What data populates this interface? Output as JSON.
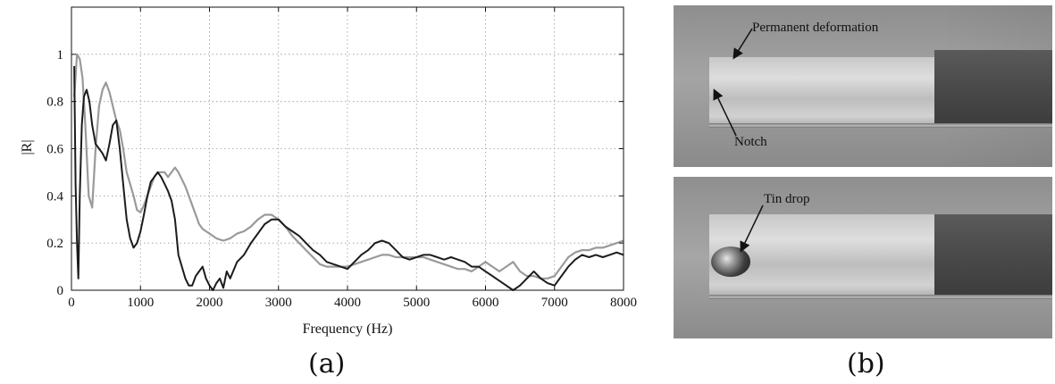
{
  "chart_data": {
    "type": "line",
    "xlabel": "Frequency (Hz)",
    "ylabel": "|R|",
    "xlim": [
      0,
      8000
    ],
    "ylim": [
      0,
      1.2
    ],
    "xticks": [
      0,
      1000,
      2000,
      3000,
      4000,
      5000,
      6000,
      7000,
      8000
    ],
    "yticks": [
      0,
      0.2,
      0.4,
      0.6,
      0.8,
      1
    ],
    "grid": true,
    "legend": "none",
    "series": [
      {
        "color": "#9a9a9a",
        "x": [
          40,
          80,
          120,
          160,
          200,
          250,
          300,
          350,
          400,
          450,
          500,
          550,
          600,
          650,
          700,
          750,
          800,
          850,
          900,
          950,
          1000,
          1050,
          1100,
          1150,
          1200,
          1250,
          1300,
          1350,
          1400,
          1450,
          1500,
          1550,
          1600,
          1650,
          1700,
          1750,
          1800,
          1850,
          1900,
          1950,
          2000,
          2100,
          2200,
          2300,
          2400,
          2500,
          2600,
          2700,
          2800,
          2900,
          3000,
          3100,
          3200,
          3300,
          3400,
          3500,
          3600,
          3700,
          3800,
          3900,
          4000,
          4100,
          4200,
          4300,
          4400,
          4500,
          4600,
          4700,
          4800,
          4900,
          5000,
          5100,
          5200,
          5300,
          5400,
          5500,
          5600,
          5700,
          5800,
          5900,
          6000,
          6100,
          6200,
          6300,
          6400,
          6500,
          6600,
          6700,
          6800,
          6900,
          7000,
          7100,
          7200,
          7300,
          7400,
          7500,
          7600,
          7700,
          7800,
          7900,
          8000
        ],
        "y": [
          0.82,
          1.0,
          0.98,
          0.9,
          0.7,
          0.4,
          0.35,
          0.6,
          0.78,
          0.85,
          0.88,
          0.84,
          0.78,
          0.72,
          0.68,
          0.6,
          0.5,
          0.45,
          0.4,
          0.34,
          0.33,
          0.36,
          0.4,
          0.44,
          0.48,
          0.5,
          0.5,
          0.5,
          0.48,
          0.5,
          0.52,
          0.5,
          0.47,
          0.44,
          0.4,
          0.36,
          0.32,
          0.28,
          0.26,
          0.25,
          0.24,
          0.22,
          0.21,
          0.22,
          0.24,
          0.25,
          0.27,
          0.3,
          0.32,
          0.32,
          0.3,
          0.27,
          0.23,
          0.2,
          0.17,
          0.14,
          0.11,
          0.1,
          0.1,
          0.1,
          0.1,
          0.11,
          0.12,
          0.13,
          0.14,
          0.15,
          0.15,
          0.14,
          0.14,
          0.14,
          0.14,
          0.14,
          0.13,
          0.12,
          0.11,
          0.1,
          0.09,
          0.09,
          0.08,
          0.1,
          0.12,
          0.1,
          0.08,
          0.1,
          0.12,
          0.08,
          0.06,
          0.06,
          0.05,
          0.05,
          0.06,
          0.1,
          0.14,
          0.16,
          0.17,
          0.17,
          0.18,
          0.18,
          0.19,
          0.2,
          0.21
        ]
      },
      {
        "color": "#1c1c1c",
        "x": [
          40,
          60,
          80,
          100,
          120,
          150,
          180,
          220,
          260,
          300,
          350,
          400,
          450,
          500,
          550,
          600,
          650,
          700,
          750,
          800,
          850,
          900,
          950,
          1000,
          1050,
          1100,
          1150,
          1200,
          1250,
          1300,
          1350,
          1400,
          1450,
          1500,
          1550,
          1600,
          1650,
          1700,
          1750,
          1800,
          1850,
          1900,
          1950,
          2000,
          2050,
          2100,
          2150,
          2200,
          2250,
          2300,
          2400,
          2500,
          2600,
          2700,
          2800,
          2900,
          3000,
          3100,
          3200,
          3300,
          3400,
          3500,
          3600,
          3700,
          3800,
          3900,
          4000,
          4100,
          4200,
          4300,
          4400,
          4500,
          4600,
          4700,
          4800,
          4900,
          5000,
          5100,
          5200,
          5300,
          5400,
          5500,
          5600,
          5700,
          5800,
          5900,
          6000,
          6100,
          6200,
          6300,
          6400,
          6500,
          6600,
          6700,
          6800,
          6900,
          7000,
          7100,
          7200,
          7300,
          7400,
          7500,
          7600,
          7700,
          7800,
          7900,
          8000
        ],
        "y": [
          0.95,
          0.45,
          0.2,
          0.05,
          0.4,
          0.7,
          0.82,
          0.85,
          0.8,
          0.7,
          0.62,
          0.6,
          0.58,
          0.55,
          0.62,
          0.7,
          0.72,
          0.6,
          0.45,
          0.3,
          0.22,
          0.18,
          0.2,
          0.25,
          0.32,
          0.4,
          0.46,
          0.48,
          0.5,
          0.48,
          0.45,
          0.42,
          0.38,
          0.3,
          0.15,
          0.1,
          0.05,
          0.02,
          0.02,
          0.06,
          0.08,
          0.1,
          0.05,
          0.02,
          0.0,
          0.03,
          0.05,
          0.01,
          0.08,
          0.05,
          0.12,
          0.15,
          0.2,
          0.24,
          0.28,
          0.3,
          0.3,
          0.27,
          0.25,
          0.23,
          0.2,
          0.17,
          0.15,
          0.12,
          0.11,
          0.1,
          0.09,
          0.12,
          0.15,
          0.17,
          0.2,
          0.21,
          0.2,
          0.17,
          0.14,
          0.13,
          0.14,
          0.15,
          0.15,
          0.14,
          0.13,
          0.14,
          0.13,
          0.12,
          0.1,
          0.1,
          0.08,
          0.06,
          0.04,
          0.02,
          0.0,
          0.02,
          0.05,
          0.08,
          0.05,
          0.03,
          0.02,
          0.06,
          0.1,
          0.13,
          0.15,
          0.14,
          0.15,
          0.14,
          0.15,
          0.16,
          0.15
        ]
      }
    ]
  },
  "captions": {
    "panel_a": "(a)",
    "panel_b": "(b)"
  },
  "photos": {
    "top_labels": [
      "Permanent deformation",
      "Notch"
    ],
    "bottom_labels": [
      "Tin drop"
    ]
  }
}
